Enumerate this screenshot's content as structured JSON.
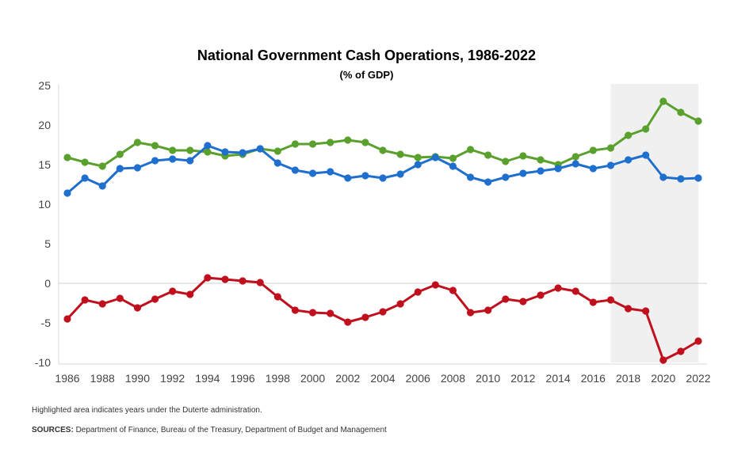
{
  "chart_data": {
    "type": "line",
    "title": "National Government Cash Operations, 1986-2022",
    "subtitle": "(% of GDP)",
    "xlabel": "",
    "ylabel": "",
    "x": [
      1986,
      1987,
      1988,
      1989,
      1990,
      1991,
      1992,
      1993,
      1994,
      1995,
      1996,
      1997,
      1998,
      1999,
      2000,
      2001,
      2002,
      2003,
      2004,
      2005,
      2006,
      2007,
      2008,
      2009,
      2010,
      2011,
      2012,
      2013,
      2014,
      2015,
      2016,
      2017,
      2018,
      2019,
      2020,
      2021,
      2022
    ],
    "xlim": [
      1986,
      2022
    ],
    "ylim": [
      -10,
      25
    ],
    "x_ticks": [
      1986,
      1988,
      1990,
      1992,
      1994,
      1996,
      1998,
      2000,
      2002,
      2004,
      2006,
      2008,
      2010,
      2012,
      2014,
      2016,
      2018,
      2020,
      2022
    ],
    "y_ticks": [
      25,
      20,
      15,
      10,
      5,
      0,
      -5,
      -10
    ],
    "grid": false,
    "zero_line": true,
    "highlight_range": [
      2017,
      2022
    ],
    "highlight_color": "#f0f0f0",
    "series": [
      {
        "color": "#5aa02c",
        "values": [
          15.9,
          15.3,
          14.8,
          16.3,
          17.8,
          17.4,
          16.8,
          16.8,
          16.6,
          16.1,
          16.3,
          17.0,
          16.7,
          17.6,
          17.6,
          17.8,
          18.1,
          17.8,
          16.8,
          16.3,
          15.9,
          16.0,
          15.8,
          16.9,
          16.2,
          15.4,
          16.1,
          15.6,
          15.0,
          16.0,
          16.8,
          17.1,
          18.7,
          19.5,
          23.0,
          21.6,
          20.5
        ]
      },
      {
        "color": "#1f6fce",
        "values": [
          11.4,
          13.3,
          12.3,
          14.5,
          14.6,
          15.5,
          15.7,
          15.5,
          17.4,
          16.6,
          16.5,
          17.0,
          15.2,
          14.3,
          13.9,
          14.1,
          13.3,
          13.6,
          13.3,
          13.8,
          15.0,
          15.9,
          14.8,
          13.4,
          12.8,
          13.4,
          13.9,
          14.2,
          14.5,
          15.1,
          14.5,
          14.9,
          15.6,
          16.2,
          13.4,
          13.2,
          13.3
        ]
      },
      {
        "color": "#c0101e",
        "values": [
          -4.5,
          -2.1,
          -2.6,
          -1.9,
          -3.1,
          -2.0,
          -1.0,
          -1.4,
          0.7,
          0.5,
          0.3,
          0.1,
          -1.7,
          -3.4,
          -3.7,
          -3.8,
          -4.9,
          -4.3,
          -3.6,
          -2.6,
          -1.1,
          -0.2,
          -0.9,
          -3.7,
          -3.4,
          -2.0,
          -2.3,
          -1.5,
          -0.6,
          -1.0,
          -2.4,
          -2.1,
          -3.2,
          -3.5,
          -9.7,
          -8.6,
          -7.3
        ]
      }
    ]
  },
  "footnote": "Highlighted area indicates years under the Duterte administration.",
  "sources_label": "SOURCES:",
  "sources_text": " Department of Finance, Bureau of the Treasury, Department of Budget and Management"
}
